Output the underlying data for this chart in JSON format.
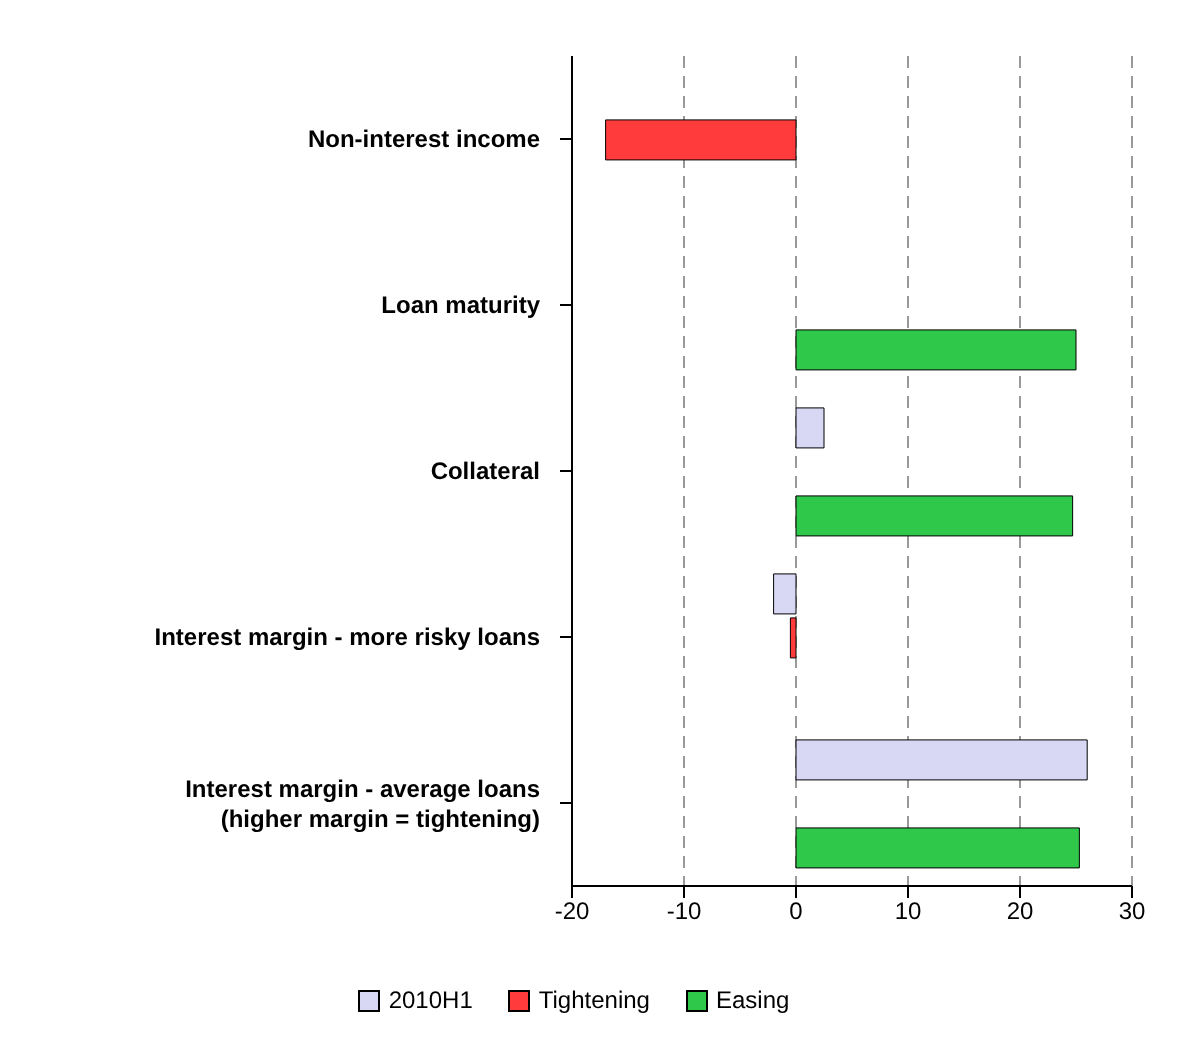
{
  "chart_data": {
    "type": "bar",
    "orientation": "horizontal",
    "categories": [
      "Non-interest income",
      "Loan maturity",
      "Collateral",
      "Interest margin - more risky loans",
      "Interest margin - average loans\n(higher margin = tightening)"
    ],
    "series": [
      {
        "name": "2010H1",
        "color": "#d8d8f4",
        "values": [
          null,
          null,
          2.5,
          -2,
          26
        ]
      },
      {
        "name": "Tightening",
        "color": "#ff3b3b",
        "values": [
          -17,
          null,
          null,
          -0.5,
          null
        ]
      },
      {
        "name": "Easing",
        "color": "#2fc84a",
        "values": [
          null,
          25,
          24.7,
          null,
          25.3
        ]
      }
    ],
    "xlim": [
      -20,
      30
    ],
    "xticks": [
      -20,
      -10,
      0,
      10,
      20,
      30
    ],
    "grid": "x",
    "legend": "bottom"
  }
}
